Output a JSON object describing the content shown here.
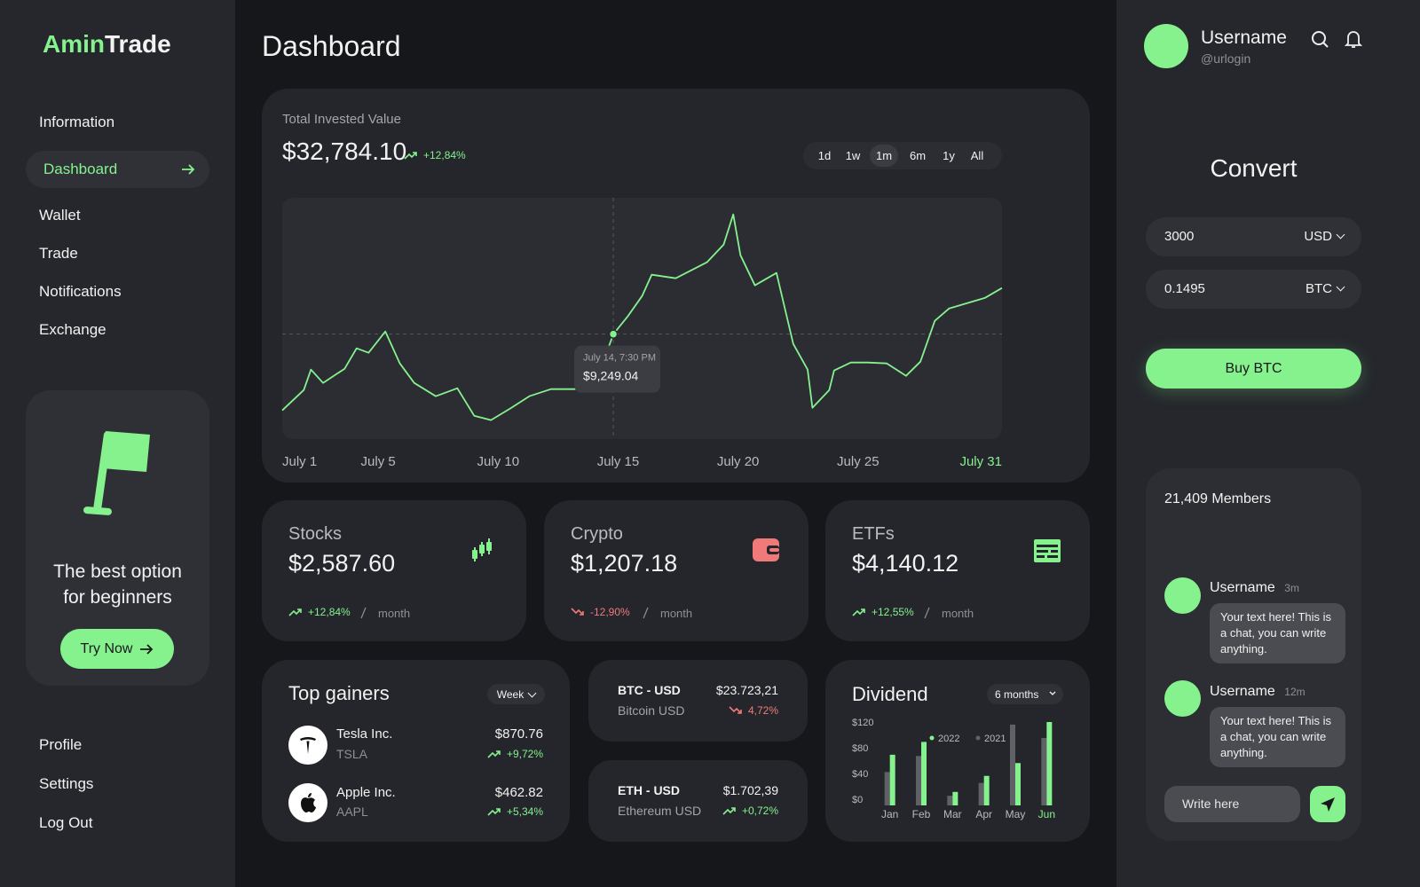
{
  "sidebar": {
    "logo": {
      "accent": "Amin",
      "rest": "Trade"
    },
    "nav": [
      {
        "label": "Information",
        "active": false
      },
      {
        "label": "Dashboard",
        "active": true
      },
      {
        "label": "Wallet",
        "active": false
      },
      {
        "label": "Trade",
        "active": false
      },
      {
        "label": "Notifications",
        "active": false
      },
      {
        "label": "Exchange",
        "active": false
      }
    ],
    "promo": {
      "text": "The best option for beginners",
      "button": "Try Now"
    },
    "footer_nav": [
      "Profile",
      "Settings",
      "Log Out"
    ]
  },
  "header": {
    "title": "Dashboard"
  },
  "overview": {
    "label": "Total Invested Value",
    "total": "$32,784.10",
    "change": "+12,84%",
    "trend": "up",
    "ranges": [
      {
        "label": "1d",
        "active": false
      },
      {
        "label": "1w",
        "active": false
      },
      {
        "label": "1m",
        "active": true
      },
      {
        "label": "6m",
        "active": false
      },
      {
        "label": "1y",
        "active": false
      },
      {
        "label": "All",
        "active": false
      }
    ]
  },
  "chart_data": [
    {
      "type": "line",
      "color": "#86f28e",
      "x": [
        1.0,
        1.9,
        2.2,
        2.7,
        3.6,
        4.1,
        4.6,
        5.3,
        5.9,
        6.5,
        7.4,
        8.3,
        9.0,
        9.7,
        10.5,
        11.3,
        12.2,
        13.2,
        13.7,
        14.4,
        14.8,
        15.4,
        16.0,
        16.4,
        17.4,
        18.7,
        19.4,
        19.8,
        20.1,
        20.7,
        21.6,
        22.3,
        22.9,
        23.1,
        23.8,
        24.0,
        24.7,
        25.4,
        26.2,
        27.0,
        27.6,
        28.2,
        28.8,
        30.3,
        31.0
      ],
      "values": [
        7542,
        7998,
        8455,
        8157,
        8475,
        8931,
        8832,
        9309,
        8594,
        8157,
        7859,
        8038,
        7423,
        7324,
        7582,
        7859,
        8018,
        8018,
        8197,
        8653,
        9249.04,
        9646,
        10103,
        10579,
        10500,
        10857,
        11254,
        11929,
        11016,
        10341,
        10619,
        9031,
        8455,
        7601,
        7998,
        8435,
        8614,
        8614,
        8594,
        8316,
        8634,
        9547,
        9825,
        10063,
        10281
      ],
      "xlim": [
        1,
        31
      ],
      "ylim": [
        6900,
        12300
      ],
      "xticks": [
        {
          "value": 1,
          "label": "July 1"
        },
        {
          "value": 5,
          "label": "July 5"
        },
        {
          "value": 10,
          "label": "July 10"
        },
        {
          "value": 15,
          "label": "July 15"
        },
        {
          "value": 20,
          "label": "July 20"
        },
        {
          "value": 25,
          "label": "July 25"
        },
        {
          "value": 31,
          "label": "July 31"
        }
      ],
      "tooltip": {
        "x": 14.8,
        "value": 9249.04,
        "label": "July 14, 7:30 PM",
        "value_label": "$9,249.04"
      }
    },
    {
      "type": "bar",
      "title": "Dividend",
      "filter": "6 months",
      "categories": [
        "Jan",
        "Feb",
        "Mar",
        "Apr",
        "May",
        "Jun"
      ],
      "series": [
        {
          "name": "2022",
          "color": "#86f28e",
          "values": [
            79,
            99,
            21,
            46,
            66,
            130
          ]
        },
        {
          "name": "2021",
          "color": "#5f6166",
          "values": [
            52,
            77,
            15,
            35,
            126,
            105
          ]
        }
      ],
      "ylim": [
        0,
        130
      ],
      "yticks": [
        {
          "value": 0,
          "label": "$0"
        },
        {
          "value": 40,
          "label": "$40"
        },
        {
          "value": 80,
          "label": "$80"
        },
        {
          "value": 120,
          "label": "$120"
        }
      ]
    }
  ],
  "assets": [
    {
      "name": "Stocks",
      "value": "$2,587.60",
      "change": "+12,84%",
      "trend": "up",
      "period": "month"
    },
    {
      "name": "Crypto",
      "value": "$1,207.18",
      "change": "-12,90%",
      "trend": "down",
      "period": "month"
    },
    {
      "name": "ETFs",
      "value": "$4,140.12",
      "change": "+12,55%",
      "trend": "up",
      "period": "month"
    }
  ],
  "top_gainers": {
    "title": "Top gainers",
    "filter": "Week",
    "items": [
      {
        "name": "Tesla Inc.",
        "ticker": "TSLA",
        "price": "$870.76",
        "change": "+9,72%",
        "trend": "up"
      },
      {
        "name": "Apple Inc.",
        "ticker": "AAPL",
        "price": "$462.82",
        "change": "+5,34%",
        "trend": "up"
      }
    ]
  },
  "pairs": [
    {
      "pair": "BTC - USD",
      "name": "Bitcoin USD",
      "price": "$23.723,21",
      "change": "4,72%",
      "trend": "down"
    },
    {
      "pair": "ETH - USD",
      "name": "Ethereum USD",
      "price": "$1.702,39",
      "change": "+0,72%",
      "trend": "up"
    }
  ],
  "user": {
    "name": "Username",
    "handle": "@urlogin"
  },
  "convert": {
    "title": "Convert",
    "from": {
      "amount": "3000",
      "currency": "USD"
    },
    "to": {
      "amount": "0.1495",
      "currency": "BTC"
    },
    "button": "Buy BTC"
  },
  "community": {
    "members": "21,409 Members",
    "messages": [
      {
        "user": "Username",
        "time": "3m",
        "text": "Your text here! This is a chat, you can write anything."
      },
      {
        "user": "Username",
        "time": "12m",
        "text": "Your text here! This is a chat, you can write anything."
      }
    ],
    "input_placeholder": "Write here"
  }
}
